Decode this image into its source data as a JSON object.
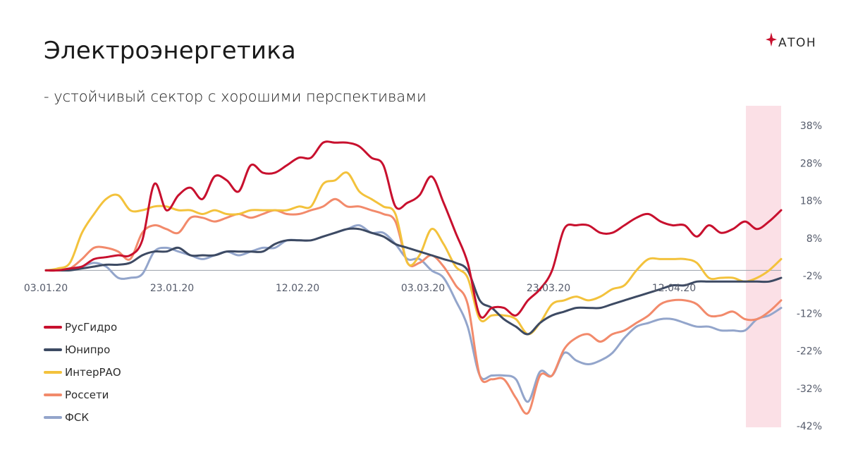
{
  "header": {
    "title": "Электроэнергетика",
    "subtitle": "- устойчивый сектор с хорошими перспективами"
  },
  "logo": {
    "text": "АТОН",
    "accent": "#c8102e"
  },
  "highlight_color": "#fbe0e6",
  "chart_data": {
    "type": "line",
    "x_tick_labels": [
      "03.01.20",
      "23.01.20",
      "12.02.20",
      "03.03.20",
      "23.03.20",
      "12.04.20"
    ],
    "y_tick_labels": [
      "38%",
      "28%",
      "18%",
      "8%",
      "-2%",
      "-12%",
      "-22%",
      "-32%",
      "-42%"
    ],
    "ylim": [
      -42,
      38
    ],
    "legend_position": "left",
    "grid": false,
    "series": [
      {
        "name": "РусГидро",
        "color": "#c8102e",
        "values": [
          0,
          0,
          0.5,
          1,
          3,
          3.5,
          4,
          4,
          8,
          23,
          16,
          20,
          22,
          19,
          25,
          24,
          21,
          28,
          26,
          26,
          28,
          30,
          30,
          34,
          34,
          34,
          33,
          30,
          28,
          17,
          18,
          20,
          25,
          18,
          10,
          2,
          -12,
          -10,
          -10,
          -12,
          -8,
          -5,
          0,
          11,
          12,
          12,
          10,
          10,
          12,
          14,
          15,
          13,
          12,
          12,
          9,
          12,
          10,
          11,
          13,
          11,
          13,
          16
        ]
      },
      {
        "name": "Юнипро",
        "color": "#3d4a63",
        "values": [
          0,
          0,
          0,
          0.5,
          1,
          1.5,
          1.5,
          2,
          4,
          5,
          5,
          6,
          4,
          4,
          4,
          5,
          5,
          5,
          5,
          7,
          8,
          8,
          8,
          9,
          10,
          11,
          11,
          10,
          9,
          7,
          6,
          5,
          4,
          3,
          2,
          0,
          -8,
          -10,
          -13,
          -15,
          -17,
          -14,
          -12,
          -11,
          -10,
          -10,
          -10,
          -9,
          -8,
          -7,
          -6,
          -5,
          -4,
          -4,
          -3,
          -3,
          -3,
          -3,
          -3,
          -3,
          -3,
          -2
        ]
      },
      {
        "name": "ИнтерРАО",
        "color": "#f3c23c",
        "values": [
          0,
          0.5,
          2,
          10,
          15,
          19,
          20,
          16,
          16,
          17,
          17,
          16,
          16,
          15,
          16,
          15,
          15,
          16,
          16,
          16,
          16,
          17,
          17,
          23,
          24,
          26,
          21,
          19,
          17,
          15,
          2,
          4,
          11,
          7,
          1,
          -2,
          -13,
          -12,
          -12,
          -13,
          -17,
          -14,
          -9,
          -8,
          -7,
          -8,
          -7,
          -5,
          -4,
          0,
          3,
          3,
          3,
          3,
          2,
          -2,
          -2,
          -2,
          -3,
          -2,
          0,
          3
        ]
      },
      {
        "name": "Россети",
        "color": "#f28a6b",
        "values": [
          0,
          0,
          0.5,
          3,
          6,
          6,
          5,
          3,
          10,
          12,
          11,
          10,
          14,
          14,
          13,
          14,
          15,
          14,
          15,
          16,
          15,
          15,
          16,
          17,
          19,
          17,
          17,
          16,
          15,
          13,
          2,
          2,
          4,
          1,
          -4,
          -9,
          -28,
          -29,
          -29,
          -34,
          -38,
          -28,
          -28,
          -21,
          -18,
          -17,
          -19,
          -17,
          -16,
          -14,
          -12,
          -9,
          -8,
          -8,
          -9,
          -12,
          -12,
          -11,
          -13,
          -13,
          -11,
          -8
        ]
      },
      {
        "name": "ФСК",
        "color": "#93a5cb",
        "values": [
          0,
          0,
          0.5,
          1,
          2,
          1,
          -2,
          -2,
          -1,
          5,
          6,
          5,
          4,
          3,
          4,
          5,
          4,
          5,
          6,
          6,
          8,
          8,
          8,
          9,
          10,
          11,
          12,
          10,
          10,
          7,
          3,
          3,
          0,
          -2,
          -8,
          -15,
          -28,
          -28,
          -28,
          -29,
          -35,
          -27,
          -28,
          -22,
          -24,
          -25,
          -24,
          -22,
          -18,
          -15,
          -14,
          -13,
          -13,
          -14,
          -15,
          -15,
          -16,
          -16,
          -16,
          -13,
          -12,
          -10
        ]
      }
    ]
  }
}
